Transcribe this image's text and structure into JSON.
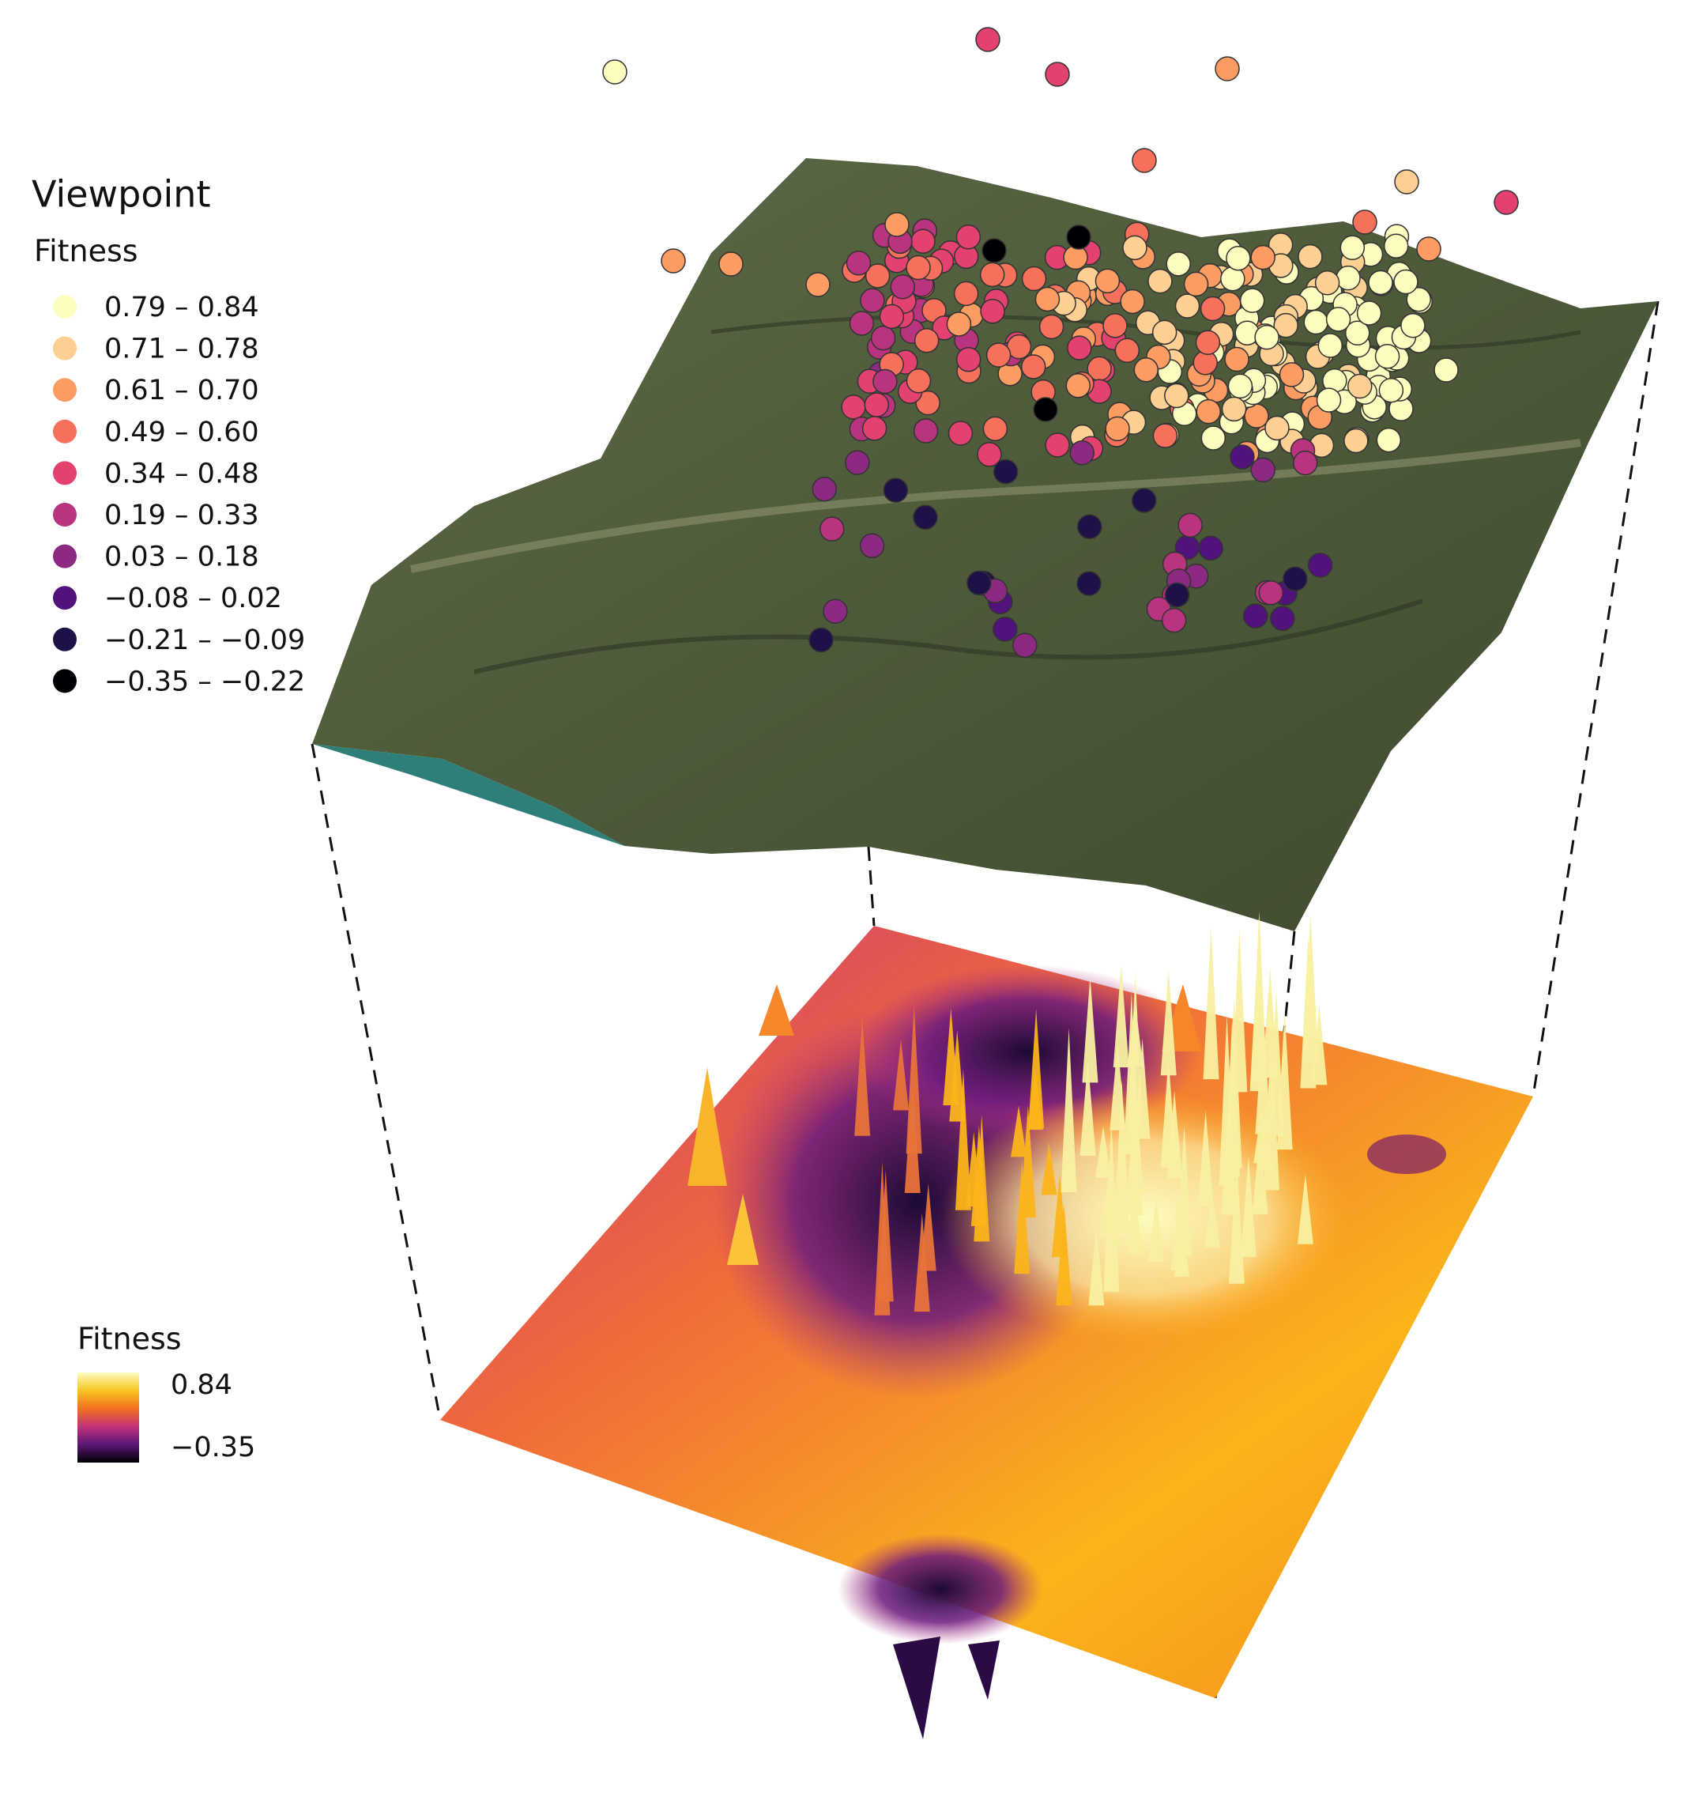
{
  "legend": {
    "title": "Viewpoint",
    "subtitle": "Fitness",
    "items": [
      {
        "label": "0.79 – 0.84",
        "color": "#fcfdbf"
      },
      {
        "label": "0.71 – 0.78",
        "color": "#fecf92"
      },
      {
        "label": "0.61 – 0.70",
        "color": "#fc9b62"
      },
      {
        "label": "0.49 – 0.60",
        "color": "#f7705c"
      },
      {
        "label": "0.34 – 0.48",
        "color": "#e3416f"
      },
      {
        "label": "0.19 – 0.33",
        "color": "#b8347e"
      },
      {
        "label": "0.03 – 0.18",
        "color": "#8c2981"
      },
      {
        "label": "−0.08 – 0.02",
        "color": "#51127c"
      },
      {
        "label": "−0.21 – −0.09",
        "color": "#1d1147"
      },
      {
        "label": "−0.35 – −0.22",
        "color": "#000004"
      }
    ]
  },
  "colorbar": {
    "title": "Fitness",
    "max_label": "0.84",
    "min_label": "−0.35",
    "colors": [
      "#fcfdbf",
      "#f8c620",
      "#f3701e",
      "#c4317a",
      "#5a1677",
      "#000004"
    ]
  }
}
